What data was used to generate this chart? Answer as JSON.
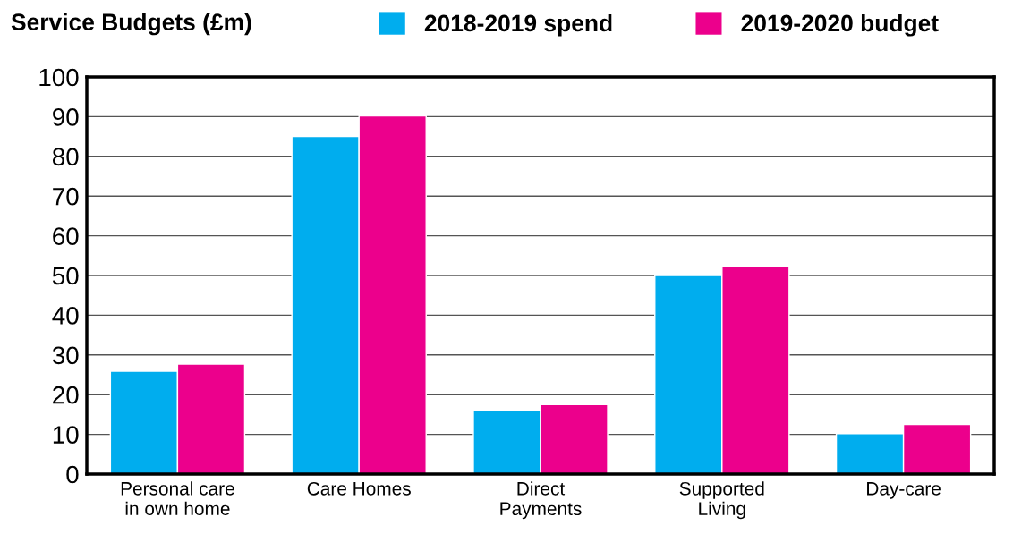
{
  "chart_data": {
    "type": "bar",
    "title": "Service Budgets (£m)",
    "categories": [
      "Personal care\nin own home",
      "Care Homes",
      "Direct\nPayments",
      "Supported\nLiving",
      "Day-care"
    ],
    "series": [
      {
        "name": "2018-2019 spend",
        "color": "#00adee",
        "values": [
          25.9,
          85.0,
          15.9,
          50.0,
          10.2
        ]
      },
      {
        "name": "2019-2020 budget",
        "color": "#ec008c",
        "values": [
          27.7,
          90.2,
          17.5,
          52.2,
          12.5
        ]
      }
    ],
    "ylim": [
      0,
      100
    ],
    "yticks": [
      0,
      10,
      20,
      30,
      40,
      50,
      60,
      70,
      80,
      90,
      100
    ],
    "grid": "y",
    "legend": "top"
  }
}
